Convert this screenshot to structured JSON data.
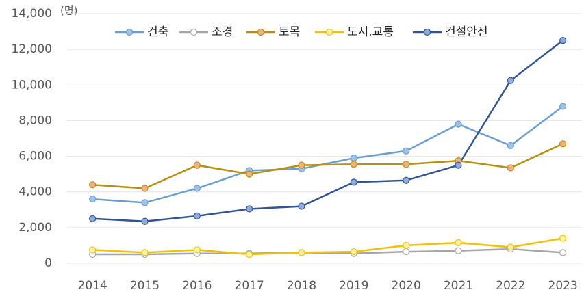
{
  "chart_data": {
    "type": "line",
    "unit_label": "(명)",
    "categories": [
      "2014",
      "2015",
      "2016",
      "2017",
      "2018",
      "2019",
      "2020",
      "2021",
      "2022",
      "2023"
    ],
    "series": [
      {
        "name": "건축",
        "color": "#6a9fd4",
        "marker_color": "#9dc3e6",
        "values": [
          3600,
          3400,
          4200,
          5200,
          5300,
          5900,
          6300,
          7800,
          6600,
          8800
        ]
      },
      {
        "name": "조경",
        "color": "#a6a6a6",
        "marker_color": "#ffffff",
        "values": [
          500,
          500,
          550,
          550,
          600,
          550,
          650,
          700,
          800,
          600
        ]
      },
      {
        "name": "토목",
        "color": "#b8900a",
        "marker_color": "#f4b183",
        "values": [
          4400,
          4200,
          5500,
          5000,
          5500,
          5550,
          5550,
          5750,
          5350,
          6700
        ]
      },
      {
        "name": "도시.교통",
        "color": "#f5c000",
        "marker_color": "#fff2a8",
        "values": [
          750,
          600,
          750,
          500,
          600,
          650,
          1000,
          1150,
          900,
          1400
        ]
      },
      {
        "name": "건설안전",
        "color": "#2f5597",
        "marker_color": "#8faadc",
        "values": [
          2500,
          2350,
          2650,
          3050,
          3200,
          4550,
          4650,
          5500,
          10250,
          12500
        ]
      }
    ],
    "ylim": [
      0,
      14000
    ],
    "yticks": [
      0,
      {
        "value": 2000,
        "label": "2,000"
      },
      {
        "value": 4000,
        "label": "4,000"
      },
      {
        "value": 6000,
        "label": "6,000"
      },
      {
        "value": 8000,
        "label": "8,000"
      },
      {
        "value": 10000,
        "label": "10,000"
      },
      {
        "value": 12000,
        "label": "12,000"
      },
      {
        "value": 14000,
        "label": "14,000"
      }
    ],
    "grid": true,
    "legend": "top"
  }
}
